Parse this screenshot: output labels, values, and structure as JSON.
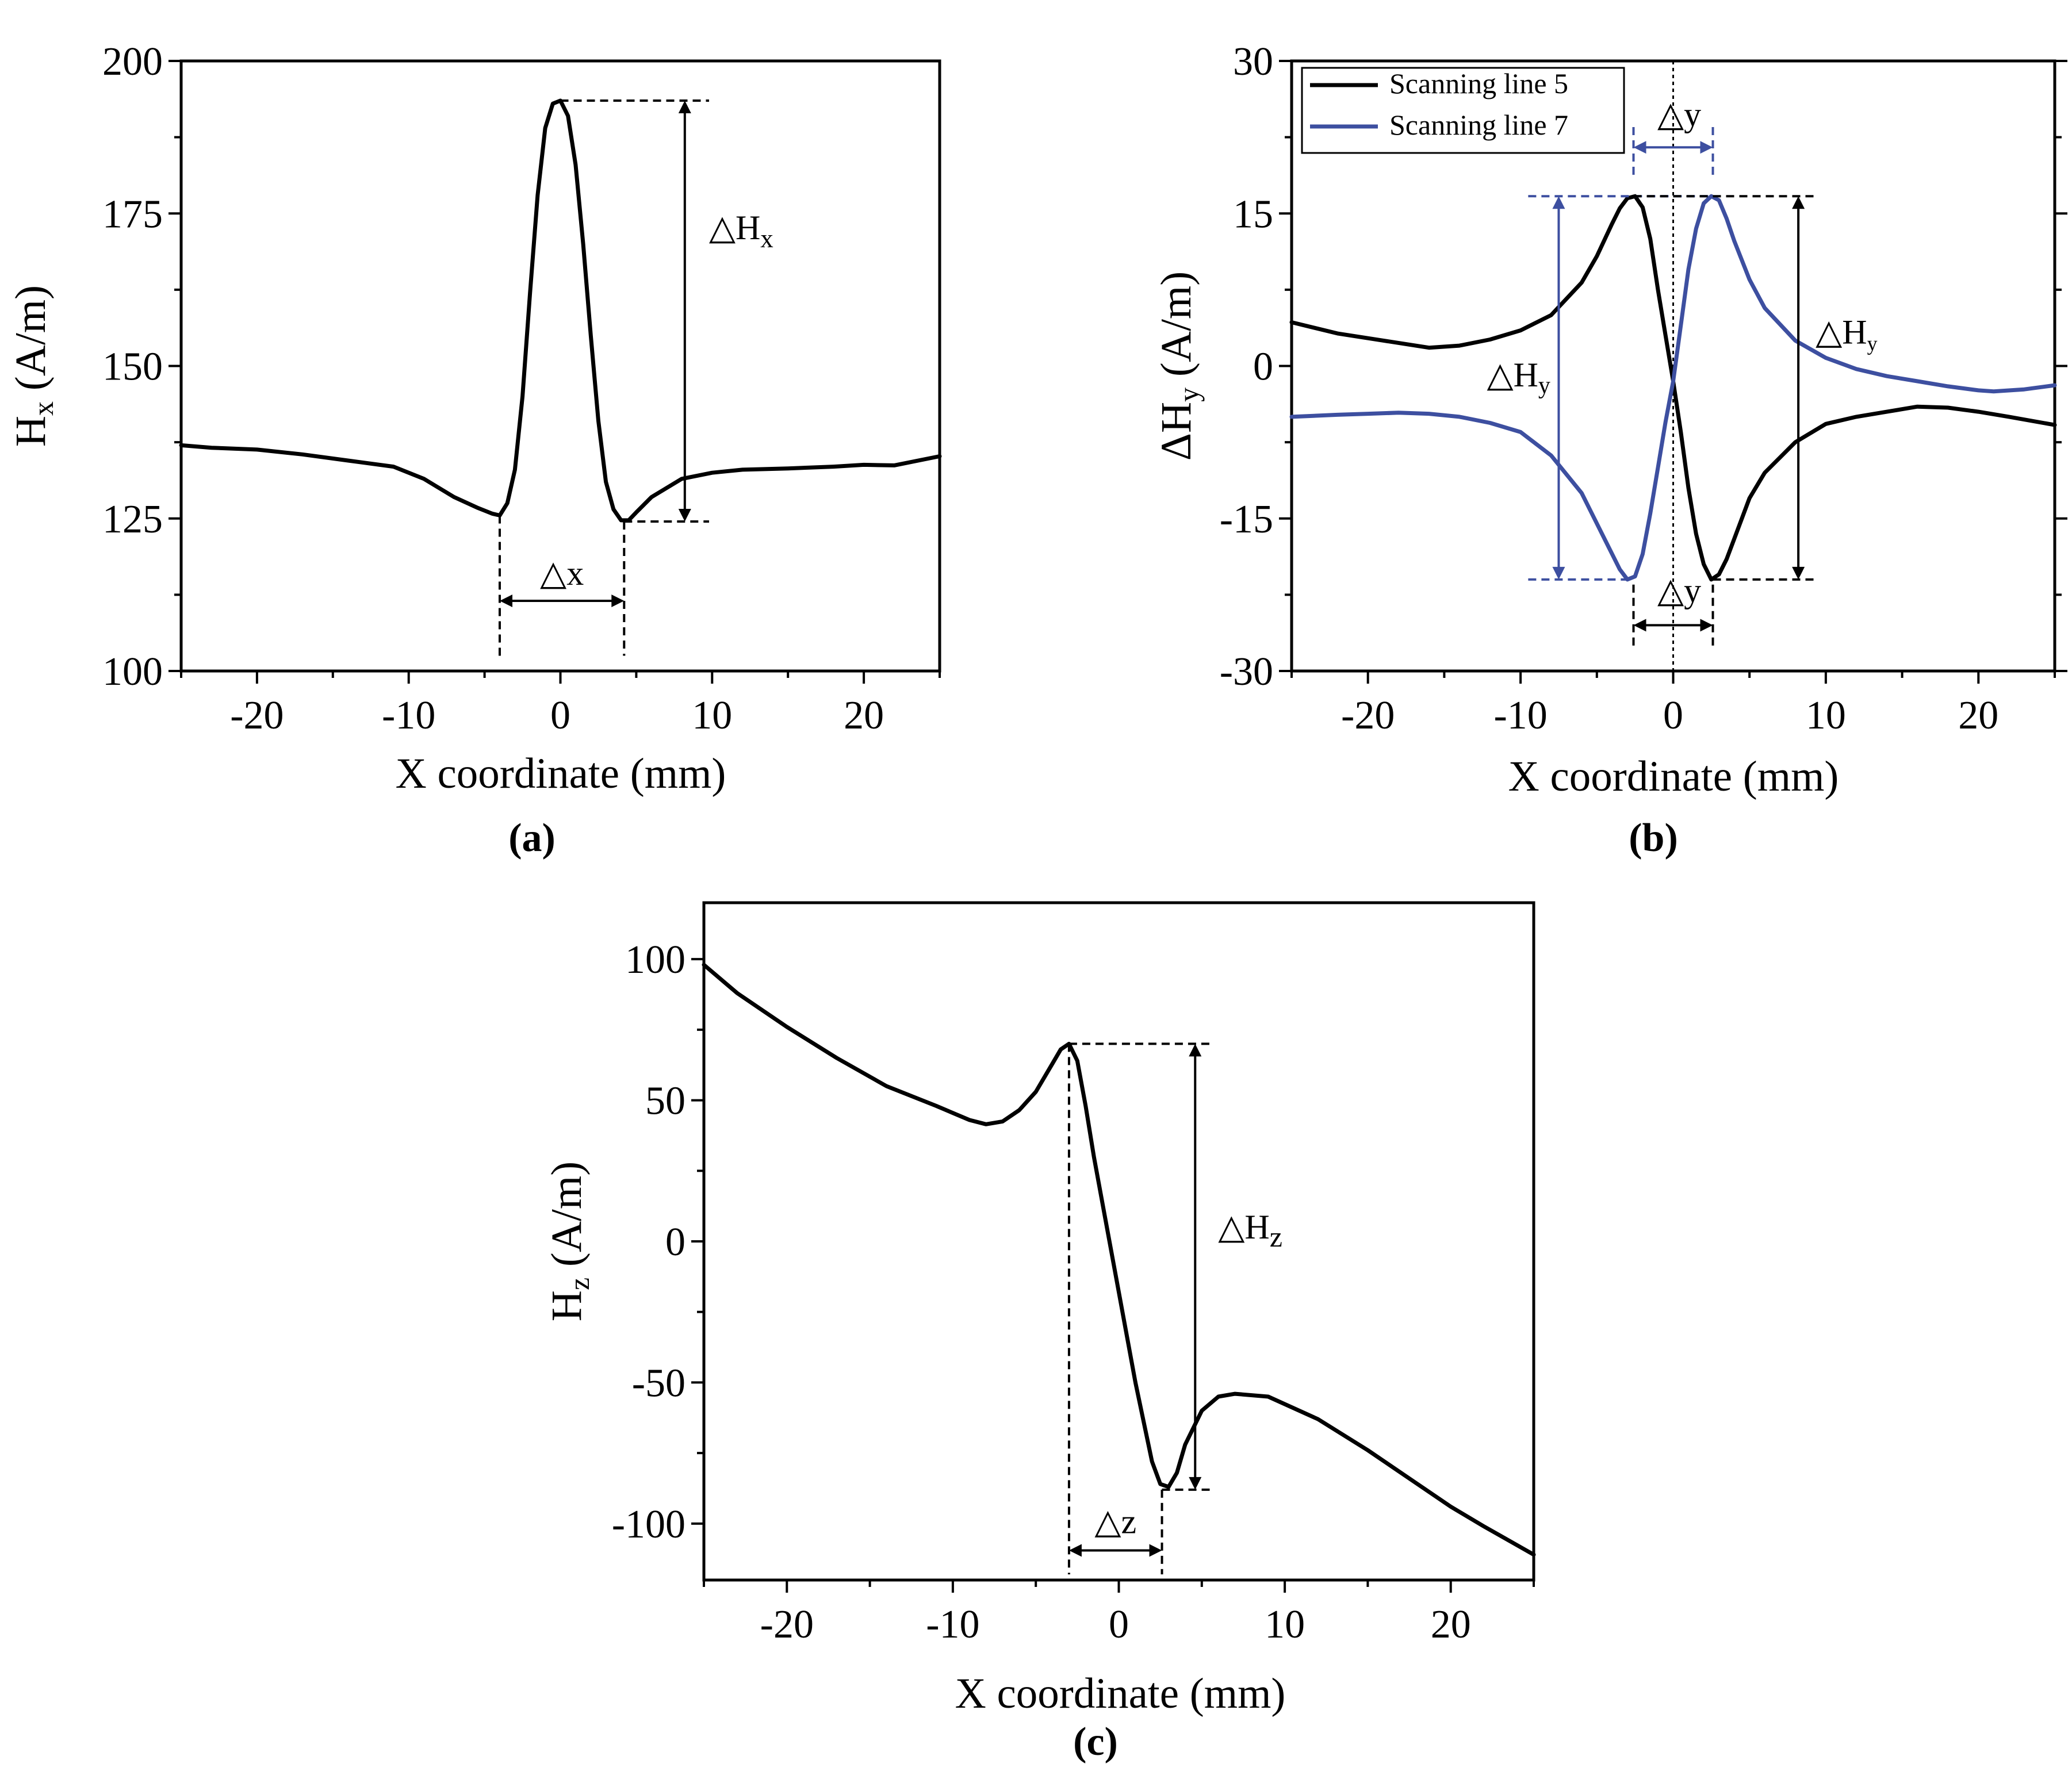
{
  "chart_data": [
    {
      "id": "a",
      "panel_label": "(a)",
      "type": "line",
      "xlabel": "X coordinate (mm)",
      "ylabel": "H",
      "ylabel_sub": "x",
      "ylabel_unit": " (A/m)",
      "xlim": [
        -25,
        25
      ],
      "ylim": [
        100,
        200
      ],
      "xticks": [
        -20,
        -10,
        0,
        10,
        20
      ],
      "yticks": [
        100,
        125,
        150,
        175,
        200
      ],
      "series": [
        {
          "name": "Hx",
          "color": "#000000",
          "x": [
            -25,
            -23,
            -20,
            -17,
            -14,
            -11,
            -9,
            -7,
            -5.5,
            -4.5,
            -4,
            -3.5,
            -3,
            -2.5,
            -2,
            -1.5,
            -1,
            -0.5,
            0,
            0.5,
            1,
            1.5,
            2,
            2.5,
            3,
            3.5,
            4,
            4.5,
            5,
            6,
            8,
            10,
            12,
            15,
            18,
            20,
            22,
            25
          ],
          "y": [
            137,
            136.6,
            136.3,
            135.5,
            134.5,
            133.5,
            131.5,
            128.5,
            126.8,
            125.8,
            125.5,
            127.5,
            133,
            145,
            162,
            178,
            189,
            193,
            193.5,
            191,
            183,
            170,
            155,
            141,
            131,
            126.5,
            124.7,
            124.7,
            126,
            128.5,
            131.5,
            132.5,
            133,
            133.2,
            133.5,
            133.8,
            133.7,
            135.2
          ]
        }
      ],
      "annotations": {
        "delta_main": "△H",
        "delta_main_sub": "x",
        "delta_width": "△x",
        "peak_x": 0,
        "peak_y": 193.5,
        "min_left_x": -4,
        "min_right_x": 4.2,
        "min_y": 124.5,
        "arrow_x": 8.2,
        "line_end_x": 9.8
      }
    },
    {
      "id": "b",
      "panel_label": "(b)",
      "type": "line",
      "xlabel": "X coordinate (mm)",
      "ylabel": "ΔH",
      "ylabel_sub": "y",
      "ylabel_unit": " (A/m)",
      "xlim": [
        -25,
        25
      ],
      "ylim": [
        -30,
        30
      ],
      "xticks": [
        -20,
        -10,
        0,
        10,
        20
      ],
      "yticks": [
        -30,
        -15,
        0,
        15,
        30
      ],
      "series": [
        {
          "name": "Scanning line 5",
          "color": "#000000",
          "x": [
            -25,
            -22,
            -19,
            -16,
            -14,
            -12,
            -10,
            -8,
            -6,
            -5,
            -4,
            -3.5,
            -3,
            -2.5,
            -2,
            -1.5,
            -1,
            -0.5,
            0,
            0.5,
            1,
            1.5,
            2,
            2.5,
            3,
            3.5,
            4,
            5,
            6,
            8,
            10,
            12,
            14,
            16,
            18,
            20,
            22,
            25
          ],
          "y": [
            4.3,
            3.2,
            2.5,
            1.8,
            2.0,
            2.6,
            3.5,
            5.0,
            8.2,
            10.8,
            14,
            15.5,
            16.5,
            16.7,
            15.6,
            12.5,
            7.5,
            3,
            -1.5,
            -6.5,
            -12,
            -16.5,
            -19.5,
            -21,
            -20.5,
            -19,
            -17,
            -13,
            -10.5,
            -7.5,
            -5.7,
            -5.0,
            -4.5,
            -4.0,
            -4.1,
            -4.5,
            -5.0,
            -5.8
          ]
        },
        {
          "name": "Scanning line 7",
          "color": "#3d4fa0",
          "x": [
            -25,
            -22,
            -20,
            -18,
            -16,
            -14,
            -12,
            -10,
            -8,
            -6,
            -5,
            -4,
            -3.5,
            -3,
            -2.5,
            -2,
            -1.5,
            -1,
            -0.5,
            0,
            0.5,
            1,
            1.5,
            2,
            2.5,
            3,
            3.5,
            4,
            5,
            6,
            8,
            10,
            12,
            14,
            16,
            18,
            20,
            21,
            23,
            25
          ],
          "y": [
            -5.0,
            -4.8,
            -4.7,
            -4.6,
            -4.7,
            -5.0,
            -5.6,
            -6.5,
            -8.8,
            -12.5,
            -15.5,
            -18.5,
            -20,
            -21,
            -20.7,
            -18.5,
            -14.5,
            -10,
            -5.5,
            -1.5,
            4,
            9.5,
            13.5,
            16,
            16.7,
            16.3,
            14.5,
            12.3,
            8.5,
            5.7,
            2.5,
            0.8,
            -0.3,
            -1.0,
            -1.5,
            -2.0,
            -2.4,
            -2.5,
            -2.3,
            -1.9
          ]
        }
      ],
      "legend": [
        "Scanning line 5",
        "Scanning line 7"
      ],
      "annotations": {
        "delta_y": "△y",
        "delta_h": "△H",
        "delta_h_sub": "y",
        "black_max_x": -2.6,
        "black_min_x": 2.6,
        "blue_min_x": -2.6,
        "blue_max_x": 2.6,
        "max_y": 16.7,
        "min_y": -21,
        "blue_arrow_x": -7.5,
        "black_arrow_x": 8.2,
        "blue_line_start_x": -9.5,
        "black_line_end_x": 9.2
      }
    },
    {
      "id": "c",
      "panel_label": "(c)",
      "type": "line",
      "xlabel": "X coordinate (mm)",
      "ylabel": "H",
      "ylabel_sub": "z",
      "ylabel_unit": " (A/m)",
      "xlim": [
        -25,
        25
      ],
      "ylim": [
        -120,
        120
      ],
      "xticks": [
        -20,
        -10,
        0,
        10,
        20
      ],
      "yticks": [
        -100,
        -50,
        0,
        50,
        100
      ],
      "series": [
        {
          "name": "Hz",
          "color": "#000000",
          "x": [
            -25,
            -23,
            -20,
            -17,
            -14,
            -11,
            -9,
            -8,
            -7,
            -6,
            -5,
            -4,
            -3.5,
            -3,
            -2.5,
            -2,
            -1.5,
            -1,
            0,
            1,
            2,
            2.5,
            3,
            3.5,
            4,
            5,
            6,
            7,
            9,
            12,
            15,
            18,
            20,
            22,
            25
          ],
          "y": [
            98,
            88,
            76,
            65,
            55,
            48,
            43,
            41.5,
            42.5,
            46.5,
            53,
            63,
            68,
            70,
            64,
            48,
            30,
            14,
            -18,
            -50,
            -78,
            -86,
            -87,
            -82,
            -72,
            -60,
            -55,
            -54,
            -55,
            -63,
            -74,
            -86,
            -94,
            -101,
            -111
          ]
        }
      ],
      "annotations": {
        "delta_main": "△H",
        "delta_main_sub": "z",
        "delta_width": "△z",
        "peak_x": -3,
        "peak_y": 70,
        "min_x": 2.6,
        "min_y": -88,
        "arrow_x": 4.6,
        "line_end_x": 5.7
      }
    }
  ]
}
